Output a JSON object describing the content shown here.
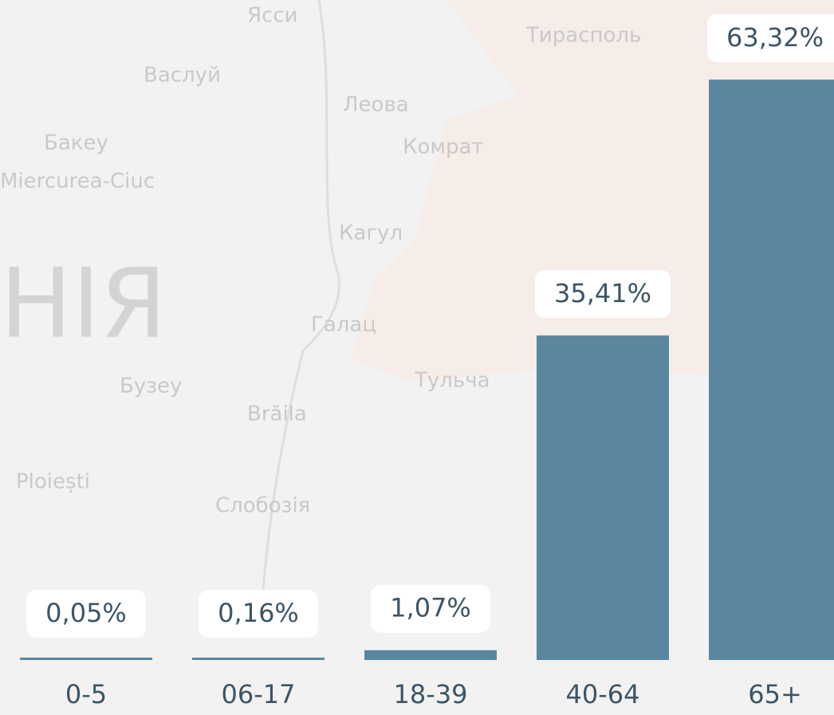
{
  "chart_data": {
    "type": "bar",
    "categories": [
      "0-5",
      "06-17",
      "18-39",
      "40-64",
      "65+"
    ],
    "values": [
      0.05,
      0.16,
      1.07,
      35.41,
      63.32
    ],
    "value_labels": [
      "0,05%",
      "0,16%",
      "1,07%",
      "35,41%",
      "63,32%"
    ],
    "color": "#5b869f",
    "ylim": [
      0,
      70
    ]
  },
  "background_map": {
    "labels": [
      "Ясси",
      "Васлуй",
      "Леова",
      "Бакеу",
      "Miercurea-Ciuc",
      "Комрат",
      "Кагул",
      "НІЯ",
      "Галац",
      "Бузеу",
      "Brăila",
      "Тульча",
      "Ploiești",
      "Слобозія",
      "Тирасполь"
    ]
  }
}
